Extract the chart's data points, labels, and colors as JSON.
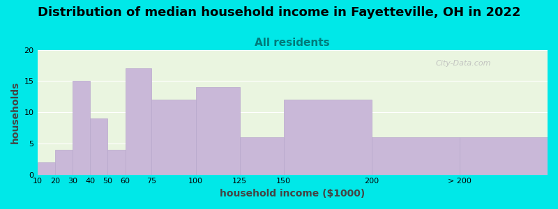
{
  "title": "Distribution of median household income in Fayetteville, OH in 2022",
  "subtitle": "All residents",
  "xlabel": "household income ($1000)",
  "ylabel": "households",
  "bar_labels": [
    "10",
    "20",
    "30",
    "40",
    "50",
    "60",
    "75",
    "100",
    "125",
    "150",
    "200",
    "> 200"
  ],
  "bar_values": [
    2,
    4,
    15,
    9,
    4,
    17,
    12,
    14,
    6,
    12,
    6,
    6
  ],
  "bar_color": "#c9b8d8",
  "bar_edge_color": "#b8a8cc",
  "ylim": [
    0,
    20
  ],
  "yticks": [
    0,
    5,
    10,
    15,
    20
  ],
  "bg_outer": "#00e8e8",
  "bg_inner": "#eaf5e0",
  "title_fontsize": 13,
  "subtitle_fontsize": 11,
  "subtitle_color": "#007a7a",
  "axis_label_fontsize": 10,
  "tick_fontsize": 8,
  "watermark": "City-Data.com"
}
